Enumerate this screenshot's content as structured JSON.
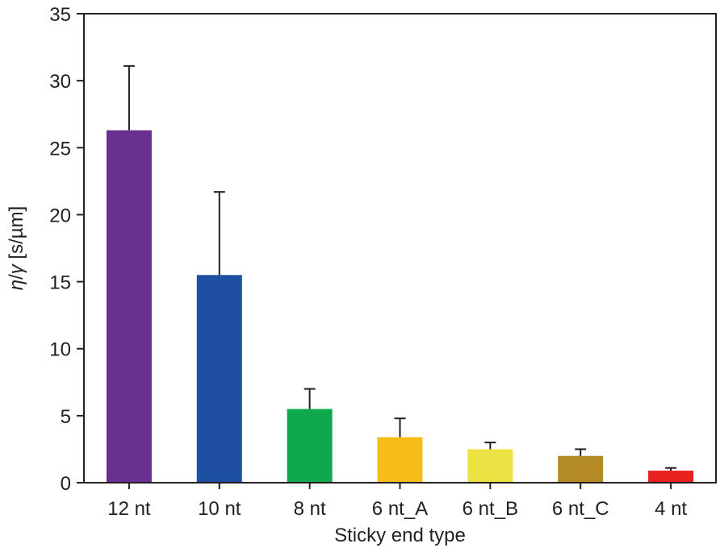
{
  "chart_data": {
    "type": "bar",
    "xlabel": "Sticky end type",
    "ylabel_parts": {
      "eta": "η",
      "slash": "/",
      "gamma": "γ",
      "unit": " [s/µm]"
    },
    "ylim": [
      0,
      35
    ],
    "yticks": [
      0,
      5,
      10,
      15,
      20,
      25,
      30,
      35
    ],
    "yticks_text": [
      "0",
      "5",
      "10",
      "15",
      "20",
      "25",
      "30",
      "35"
    ],
    "grid": false,
    "categories": [
      "12 nt",
      "10 nt",
      "8 nt",
      "6 nt_A",
      "6 nt_B",
      "6 nt_C",
      "4 nt"
    ],
    "values": [
      26.3,
      15.5,
      5.5,
      3.4,
      2.5,
      2.0,
      0.9
    ],
    "errors_upper": [
      4.8,
      6.2,
      1.5,
      1.4,
      0.5,
      0.5,
      0.2
    ],
    "colors": [
      "#6a3090",
      "#1f4fa1",
      "#10a84d",
      "#f6bd16",
      "#ece244",
      "#b38a23",
      "#e8201f"
    ]
  }
}
